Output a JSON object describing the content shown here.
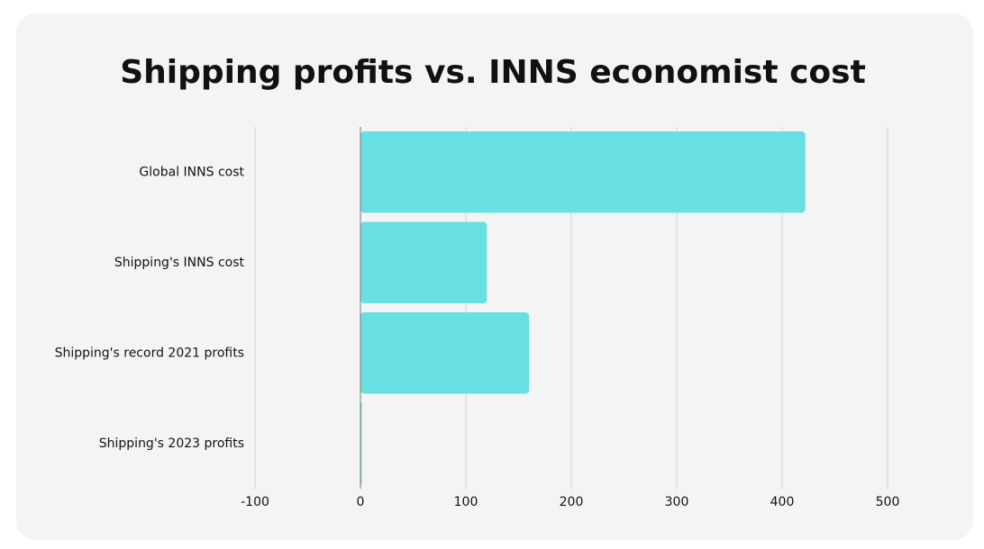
{
  "chart_data": {
    "type": "bar",
    "orientation": "horizontal",
    "title": "Shipping profits vs. INNS economist cost",
    "categories": [
      "Global INNS cost",
      "Shipping's INNS cost",
      "Shipping's record 2021 profits",
      "Shipping's 2023 profits"
    ],
    "values": [
      422,
      120,
      160,
      1
    ],
    "color": "#68e0e3",
    "xlim": [
      -100,
      500
    ],
    "xticks": [
      -100,
      0,
      100,
      200,
      300,
      400,
      500
    ],
    "grid": true
  }
}
